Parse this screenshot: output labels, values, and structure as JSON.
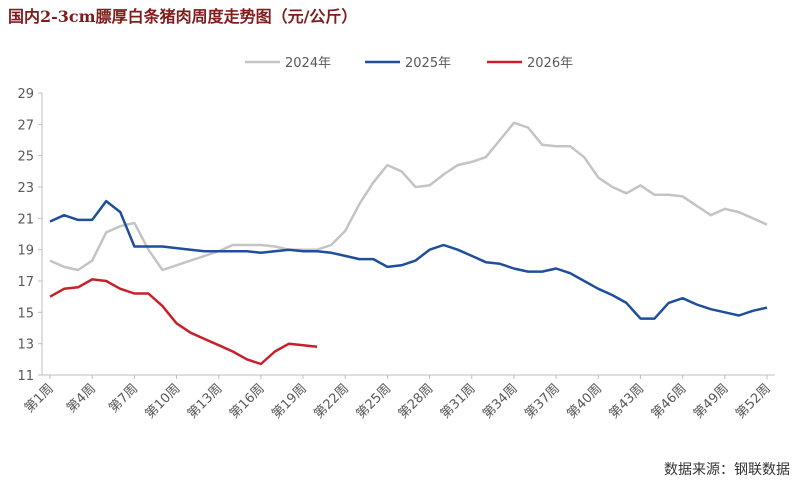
{
  "chart_data": {
    "type": "line",
    "title": "国内2-3cm膘厚白条猪肉周度走势图（元/公斤）",
    "note": "数据来源：钢联数据",
    "categories": [
      "第1周",
      null,
      null,
      "第4周",
      null,
      null,
      "第7周",
      null,
      null,
      "第10周",
      null,
      null,
      "第13周",
      null,
      null,
      "第16周",
      null,
      null,
      "第19周",
      null,
      null,
      "第22周",
      null,
      null,
      "第25周",
      null,
      null,
      "第28周",
      null,
      null,
      "第31周",
      null,
      null,
      "第34周",
      null,
      null,
      "第37周",
      null,
      null,
      "第40周",
      null,
      null,
      "第43周",
      null,
      null,
      "第46周",
      null,
      null,
      "第49周",
      null,
      null,
      "第52周"
    ],
    "ylim": [
      11,
      29
    ],
    "yticks": [
      11,
      13,
      15,
      17,
      19,
      21,
      23,
      25,
      27,
      29
    ],
    "legend": "top",
    "series": [
      {
        "name": "2024年",
        "color": "#c4c4c4",
        "values": [
          18.3,
          17.9,
          17.7,
          18.3,
          20.1,
          20.5,
          20.7,
          19.0,
          17.7,
          18.0,
          18.3,
          18.6,
          18.9,
          19.3,
          19.3,
          19.3,
          19.2,
          19.0,
          19.0,
          19.0,
          19.3,
          20.2,
          21.9,
          23.3,
          24.4,
          24.0,
          23.0,
          23.1,
          23.8,
          24.4,
          24.6,
          24.9,
          26.0,
          27.1,
          26.8,
          25.7,
          25.6,
          25.6,
          24.9,
          23.6,
          23.0,
          22.6,
          23.1,
          22.5,
          22.5,
          22.4,
          21.8,
          21.2,
          21.6,
          21.4,
          21.0,
          20.6
        ]
      },
      {
        "name": "2025年",
        "color": "#1f4e9c",
        "values": [
          20.8,
          21.2,
          20.9,
          20.9,
          22.1,
          21.4,
          19.2,
          19.2,
          19.2,
          19.1,
          19.0,
          18.9,
          18.9,
          18.9,
          18.9,
          18.8,
          18.9,
          19.0,
          18.9,
          18.9,
          18.8,
          18.6,
          18.4,
          18.4,
          17.9,
          18.0,
          18.3,
          19.0,
          19.3,
          19.0,
          18.6,
          18.2,
          18.1,
          17.8,
          17.6,
          17.6,
          17.8,
          17.5,
          17.0,
          16.5,
          16.1,
          15.6,
          14.6,
          14.6,
          15.6,
          15.9,
          15.5,
          15.2,
          15.0,
          14.8,
          15.1,
          15.3
        ]
      },
      {
        "name": "2026年",
        "color": "#c8202a",
        "values": [
          16.0,
          16.5,
          16.6,
          17.1,
          17.0,
          16.5,
          16.2,
          16.2,
          15.4,
          14.3,
          13.7,
          13.3,
          12.9,
          12.5,
          12.0,
          11.7,
          12.5,
          13.0,
          12.9,
          12.8,
          null,
          null,
          null,
          null,
          null,
          null,
          null,
          null,
          null,
          null,
          null,
          null,
          null,
          null,
          null,
          null,
          null,
          null,
          null,
          null,
          null,
          null,
          null,
          null,
          null,
          null,
          null,
          null,
          null,
          null,
          null,
          null
        ]
      }
    ]
  }
}
